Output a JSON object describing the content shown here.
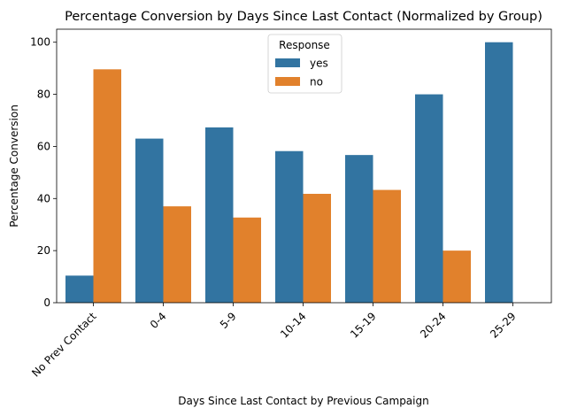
{
  "chart_data": {
    "type": "bar",
    "title": "Percentage Conversion by Days Since Last Contact (Normalized by Group)",
    "xlabel": "Days Since Last Contact by Previous Campaign",
    "ylabel": "Percentage Conversion",
    "categories": [
      "No Prev Contact",
      "0-4",
      "5-9",
      "10-14",
      "15-19",
      "20-24",
      "25-29"
    ],
    "series": [
      {
        "name": "yes",
        "color": "#3274a1",
        "values": [
          10.4,
          63.0,
          67.3,
          58.2,
          56.7,
          80.0,
          100.0
        ]
      },
      {
        "name": "no",
        "color": "#e1812c",
        "values": [
          89.6,
          37.0,
          32.7,
          41.8,
          43.3,
          20.0,
          0.0
        ]
      }
    ],
    "ylim": [
      0,
      105
    ],
    "yticks": [
      0,
      20,
      40,
      60,
      80,
      100
    ],
    "grid": false,
    "legend": {
      "title": "Response",
      "placement": "upper-center"
    }
  }
}
